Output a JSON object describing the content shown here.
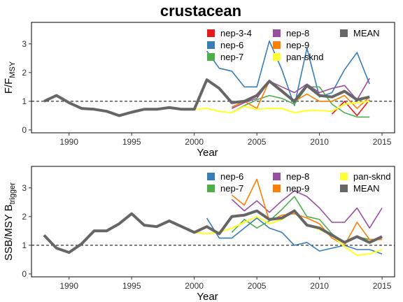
{
  "figure": {
    "title": "crustacean"
  },
  "chart_data": [
    {
      "type": "line",
      "panel": "top",
      "xlabel": "Year",
      "ylabel": {
        "main": "F/F",
        "sub": "MSY"
      },
      "xlim": [
        1987,
        2016
      ],
      "ylim": [
        -0.1,
        3.75
      ],
      "xticks": [
        1990,
        1995,
        2000,
        2005,
        2010,
        2015
      ],
      "yticks": [
        0,
        1,
        2,
        3
      ],
      "reference_line": 1,
      "legend_position": "top-right",
      "series": [
        {
          "name": "nep-3-4",
          "color": "#e41a1c",
          "width": 1.6,
          "points": [
            [
              2011,
              0.55
            ],
            [
              2012,
              1.0
            ],
            [
              2013,
              0.5
            ],
            [
              2014,
              1.05
            ]
          ]
        },
        {
          "name": "nep-6",
          "color": "#377eb8",
          "width": 1.6,
          "points": [
            [
              2001,
              2.75
            ],
            [
              2002,
              2.15
            ],
            [
              2003,
              2.05
            ],
            [
              2004,
              1.5
            ],
            [
              2005,
              1.5
            ],
            [
              2006,
              3.1
            ],
            [
              2007,
              2.1
            ],
            [
              2008,
              0.85
            ],
            [
              2009,
              2.85
            ],
            [
              2010,
              1.15
            ],
            [
              2011,
              1.3
            ],
            [
              2012,
              2.1
            ],
            [
              2013,
              2.7
            ],
            [
              2014,
              1.6
            ]
          ]
        },
        {
          "name": "nep-7",
          "color": "#4daf4a",
          "width": 1.6,
          "points": [
            [
              2003,
              0.6
            ],
            [
              2004,
              0.85
            ],
            [
              2005,
              1.05
            ],
            [
              2006,
              1.2
            ],
            [
              2007,
              1.1
            ],
            [
              2008,
              0.9
            ],
            [
              2009,
              1.5
            ],
            [
              2010,
              1.5
            ],
            [
              2011,
              0.9
            ],
            [
              2012,
              0.6
            ],
            [
              2013,
              0.45
            ],
            [
              2014,
              0.45
            ]
          ]
        },
        {
          "name": "nep-8",
          "color": "#984ea3",
          "width": 1.6,
          "points": [
            [
              2003,
              0.75
            ],
            [
              2004,
              0.95
            ],
            [
              2005,
              1.1
            ],
            [
              2006,
              1.7
            ],
            [
              2007,
              1.5
            ],
            [
              2008,
              1.3
            ],
            [
              2009,
              1.6
            ],
            [
              2010,
              1.3
            ],
            [
              2011,
              1.45
            ],
            [
              2012,
              1.55
            ],
            [
              2013,
              1.05
            ],
            [
              2014,
              1.8
            ]
          ]
        },
        {
          "name": "nep-9",
          "color": "#ff7f00",
          "width": 1.6,
          "points": [
            [
              2003,
              0.8
            ],
            [
              2004,
              1.0
            ],
            [
              2005,
              0.75
            ],
            [
              2006,
              1.7
            ],
            [
              2007,
              1.4
            ],
            [
              2008,
              1.0
            ],
            [
              2009,
              1.25
            ],
            [
              2010,
              1.0
            ],
            [
              2011,
              1.0
            ],
            [
              2012,
              1.2
            ],
            [
              2013,
              0.75
            ],
            [
              2014,
              1.15
            ]
          ]
        },
        {
          "name": "pan-sknd",
          "color": "#ffff33",
          "width": 2.2,
          "points": [
            [
              1988,
              1.0
            ],
            [
              1989,
              1.2
            ],
            [
              1990,
              0.95
            ],
            [
              1991,
              0.75
            ],
            [
              1992,
              0.72
            ],
            [
              1993,
              0.65
            ],
            [
              1994,
              0.5
            ],
            [
              1995,
              0.62
            ],
            [
              1996,
              0.72
            ],
            [
              1997,
              0.72
            ],
            [
              1998,
              0.78
            ],
            [
              1999,
              0.72
            ],
            [
              2000,
              0.72
            ],
            [
              2001,
              0.75
            ],
            [
              2002,
              0.65
            ],
            [
              2003,
              0.6
            ],
            [
              2004,
              0.82
            ],
            [
              2005,
              0.72
            ],
            [
              2006,
              0.75
            ],
            [
              2007,
              0.75
            ],
            [
              2008,
              0.6
            ],
            [
              2009,
              0.68
            ],
            [
              2010,
              0.68
            ],
            [
              2011,
              0.65
            ],
            [
              2012,
              0.9
            ],
            [
              2013,
              0.95
            ],
            [
              2014,
              1.0
            ]
          ]
        },
        {
          "name": "MEAN",
          "color": "#666666",
          "width": 4,
          "points": [
            [
              1988,
              1.0
            ],
            [
              1989,
              1.2
            ],
            [
              1990,
              0.95
            ],
            [
              1991,
              0.75
            ],
            [
              1992,
              0.72
            ],
            [
              1993,
              0.65
            ],
            [
              1994,
              0.5
            ],
            [
              1995,
              0.62
            ],
            [
              1996,
              0.72
            ],
            [
              1997,
              0.72
            ],
            [
              1998,
              0.78
            ],
            [
              1999,
              0.72
            ],
            [
              2000,
              0.72
            ],
            [
              2001,
              1.75
            ],
            [
              2002,
              1.45
            ],
            [
              2003,
              0.95
            ],
            [
              2004,
              1.0
            ],
            [
              2005,
              1.2
            ],
            [
              2006,
              1.7
            ],
            [
              2007,
              1.35
            ],
            [
              2008,
              1.0
            ],
            [
              2009,
              1.55
            ],
            [
              2010,
              1.2
            ],
            [
              2011,
              1.15
            ],
            [
              2012,
              1.35
            ],
            [
              2013,
              1.05
            ],
            [
              2014,
              1.15
            ]
          ]
        }
      ]
    },
    {
      "type": "line",
      "panel": "bottom",
      "xlabel": "Year",
      "ylabel": {
        "main": "SSB/MSY B",
        "sub": "trigger"
      },
      "xlim": [
        1987,
        2016
      ],
      "ylim": [
        -0.1,
        3.75
      ],
      "xticks": [
        1990,
        1995,
        2000,
        2005,
        2010,
        2015
      ],
      "yticks": [
        0,
        1,
        2,
        3
      ],
      "reference_line": 1,
      "legend_position": "top-right",
      "series": [
        {
          "name": "nep-6",
          "color": "#377eb8",
          "width": 1.6,
          "points": [
            [
              2001,
              1.95
            ],
            [
              2002,
              1.25
            ],
            [
              2003,
              1.25
            ],
            [
              2004,
              1.6
            ],
            [
              2005,
              1.95
            ],
            [
              2006,
              1.6
            ],
            [
              2007,
              1.45
            ],
            [
              2008,
              1.0
            ],
            [
              2009,
              1.1
            ],
            [
              2010,
              0.8
            ],
            [
              2011,
              0.9
            ],
            [
              2012,
              1.0
            ],
            [
              2013,
              0.85
            ],
            [
              2014,
              0.85
            ],
            [
              2015,
              0.7
            ]
          ]
        },
        {
          "name": "nep-7",
          "color": "#4daf4a",
          "width": 1.6,
          "points": [
            [
              2003,
              1.45
            ],
            [
              2004,
              1.9
            ],
            [
              2005,
              1.6
            ],
            [
              2006,
              1.85
            ],
            [
              2007,
              2.25
            ],
            [
              2008,
              2.7
            ],
            [
              2009,
              2.0
            ],
            [
              2010,
              1.9
            ],
            [
              2011,
              1.4
            ],
            [
              2012,
              1.1
            ],
            [
              2013,
              1.3
            ],
            [
              2014,
              1.2
            ],
            [
              2015,
              1.2
            ]
          ]
        },
        {
          "name": "nep-8",
          "color": "#984ea3",
          "width": 1.6,
          "points": [
            [
              2003,
              2.6
            ],
            [
              2004,
              2.2
            ],
            [
              2005,
              2.55
            ],
            [
              2006,
              2.15
            ],
            [
              2007,
              2.55
            ],
            [
              2008,
              2.9
            ],
            [
              2009,
              2.7
            ],
            [
              2010,
              2.3
            ],
            [
              2011,
              1.8
            ],
            [
              2012,
              1.8
            ],
            [
              2013,
              2.3
            ],
            [
              2014,
              1.6
            ],
            [
              2015,
              2.3
            ]
          ]
        },
        {
          "name": "nep-9",
          "color": "#ff7f00",
          "width": 1.6,
          "points": [
            [
              2003,
              2.75
            ],
            [
              2004,
              2.4
            ],
            [
              2005,
              3.3
            ],
            [
              2006,
              1.85
            ],
            [
              2007,
              2.05
            ],
            [
              2008,
              2.1
            ],
            [
              2009,
              1.95
            ],
            [
              2010,
              1.75
            ],
            [
              2011,
              1.25
            ],
            [
              2012,
              1.0
            ],
            [
              2013,
              1.8
            ],
            [
              2014,
              1.2
            ],
            [
              2015,
              1.2
            ]
          ]
        },
        {
          "name": "pan-sknd",
          "color": "#ffff33",
          "width": 2.2,
          "points": [
            [
              1988,
              1.35
            ],
            [
              1989,
              0.9
            ],
            [
              1990,
              0.75
            ],
            [
              1991,
              1.05
            ],
            [
              1992,
              1.5
            ],
            [
              1993,
              1.5
            ],
            [
              1994,
              1.75
            ],
            [
              1995,
              2.1
            ],
            [
              1996,
              1.7
            ],
            [
              1997,
              1.65
            ],
            [
              1998,
              1.85
            ],
            [
              1999,
              1.65
            ],
            [
              2000,
              1.45
            ],
            [
              2001,
              1.4
            ],
            [
              2002,
              1.45
            ],
            [
              2003,
              1.6
            ],
            [
              2004,
              1.8
            ],
            [
              2005,
              2.0
            ],
            [
              2006,
              1.75
            ],
            [
              2007,
              1.9
            ],
            [
              2008,
              2.2
            ],
            [
              2009,
              1.7
            ],
            [
              2010,
              1.55
            ],
            [
              2011,
              1.35
            ],
            [
              2012,
              0.95
            ],
            [
              2013,
              0.65
            ],
            [
              2014,
              0.7
            ],
            [
              2015,
              0.85
            ]
          ]
        },
        {
          "name": "MEAN",
          "color": "#666666",
          "width": 4,
          "points": [
            [
              1988,
              1.35
            ],
            [
              1989,
              0.9
            ],
            [
              1990,
              0.75
            ],
            [
              1991,
              1.05
            ],
            [
              1992,
              1.5
            ],
            [
              1993,
              1.5
            ],
            [
              1994,
              1.75
            ],
            [
              1995,
              2.1
            ],
            [
              1996,
              1.7
            ],
            [
              1997,
              1.65
            ],
            [
              1998,
              1.85
            ],
            [
              1999,
              1.65
            ],
            [
              2000,
              1.45
            ],
            [
              2001,
              1.65
            ],
            [
              2002,
              1.4
            ],
            [
              2003,
              2.0
            ],
            [
              2004,
              2.05
            ],
            [
              2005,
              2.2
            ],
            [
              2006,
              1.9
            ],
            [
              2007,
              1.95
            ],
            [
              2008,
              2.2
            ],
            [
              2009,
              1.7
            ],
            [
              2010,
              1.6
            ],
            [
              2011,
              1.35
            ],
            [
              2012,
              1.1
            ],
            [
              2013,
              1.3
            ],
            [
              2014,
              1.1
            ],
            [
              2015,
              1.3
            ]
          ]
        }
      ]
    }
  ],
  "legends": {
    "top": [
      "nep-3-4",
      "nep-6",
      "nep-7",
      "nep-8",
      "nep-9",
      "pan-sknd",
      "MEAN"
    ],
    "bottom": [
      "nep-6",
      "nep-7",
      "nep-8",
      "nep-9",
      "pan-sknd",
      "MEAN"
    ]
  }
}
